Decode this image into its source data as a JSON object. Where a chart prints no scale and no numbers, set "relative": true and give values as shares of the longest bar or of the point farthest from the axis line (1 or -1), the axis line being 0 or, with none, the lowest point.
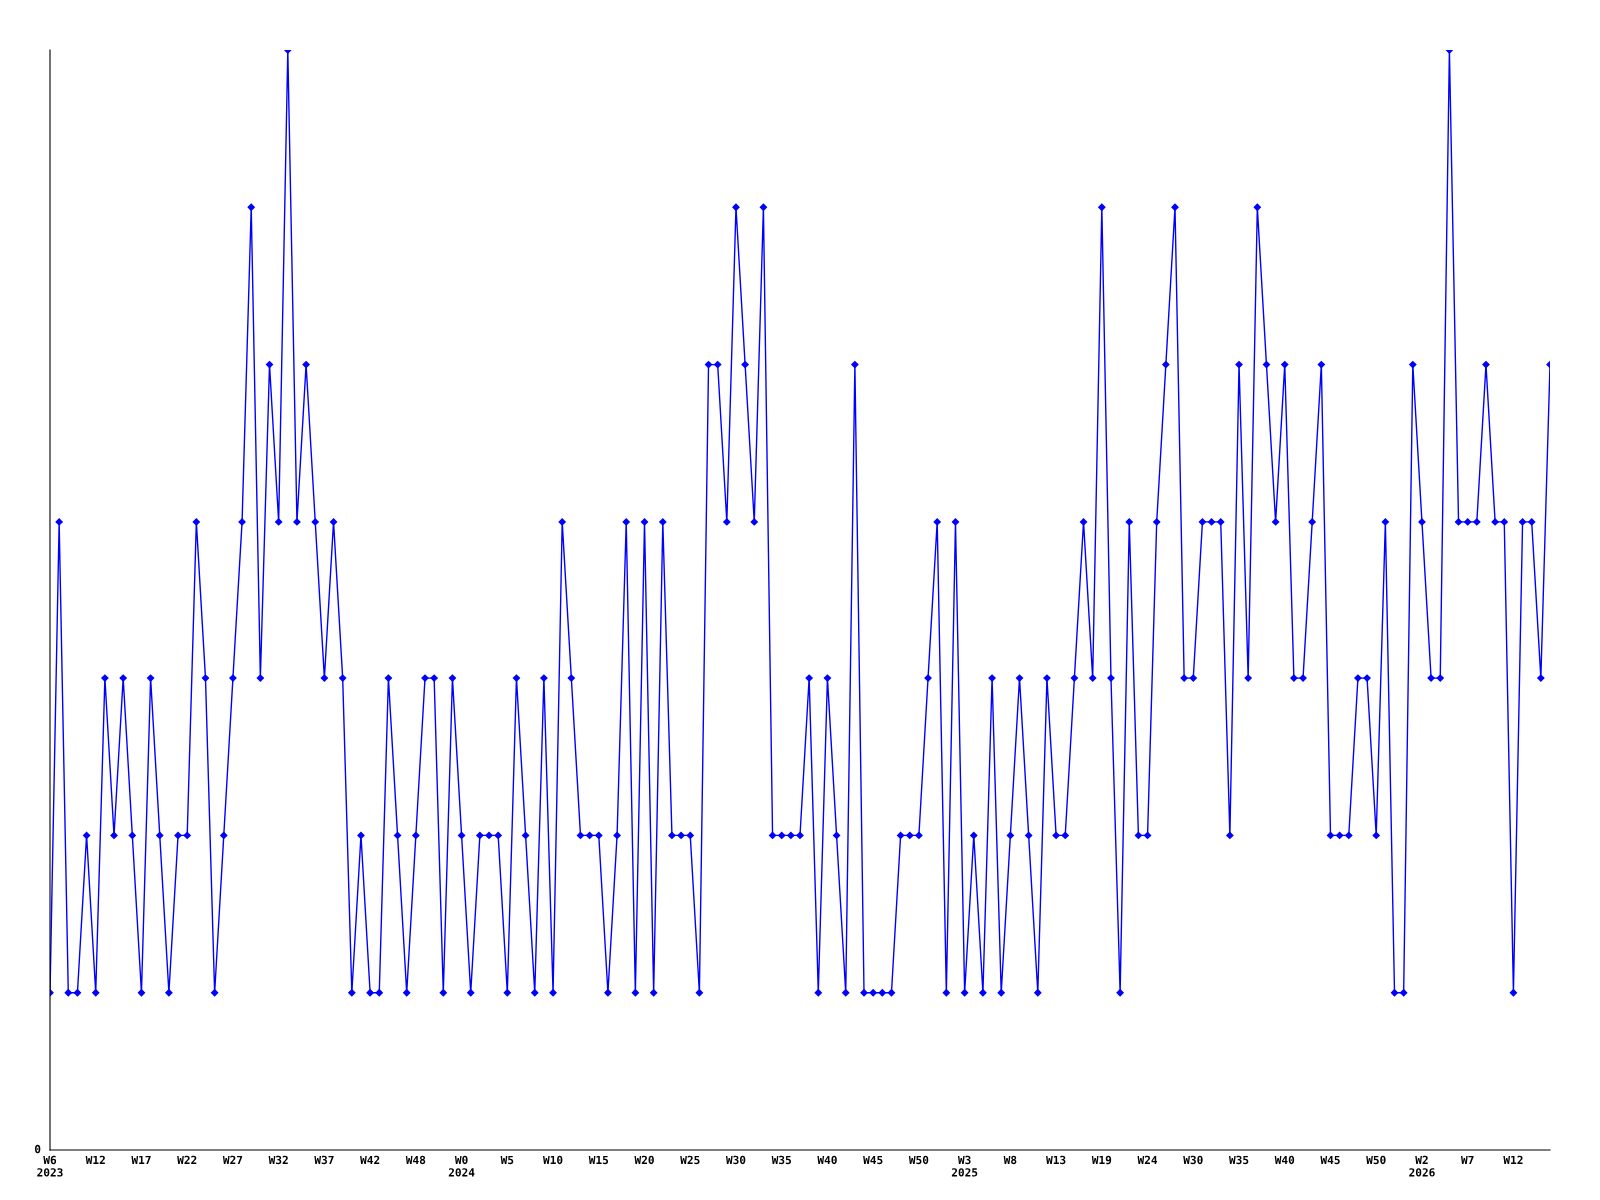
{
  "chart_data": {
    "type": "line",
    "relative": true,
    "marker": "diamond",
    "line_style": "solid",
    "grid": false,
    "annotations": [
      "0"
    ],
    "categories": [
      "W6\n2023",
      null,
      null,
      null,
      null,
      "W12",
      null,
      null,
      null,
      null,
      "W17",
      null,
      null,
      null,
      null,
      "W22",
      null,
      null,
      null,
      null,
      "W27",
      null,
      null,
      null,
      null,
      "W32",
      null,
      null,
      null,
      null,
      "W37",
      null,
      null,
      null,
      null,
      "W42",
      null,
      null,
      null,
      null,
      "W48",
      null,
      null,
      null,
      null,
      "W0\n2024",
      null,
      null,
      null,
      null,
      "W5",
      null,
      null,
      null,
      null,
      "W10",
      null,
      null,
      null,
      null,
      "W15",
      null,
      null,
      null,
      null,
      "W20",
      null,
      null,
      null,
      null,
      "W25",
      null,
      null,
      null,
      null,
      "W30",
      null,
      null,
      null,
      null,
      "W35",
      null,
      null,
      null,
      null,
      "W40",
      null,
      null,
      null,
      null,
      "W45",
      null,
      null,
      null,
      null,
      "W50",
      null,
      null,
      null,
      null,
      "W3\n2025",
      null,
      null,
      null,
      null,
      "W8",
      null,
      null,
      null,
      null,
      "W13",
      null,
      null,
      null,
      null,
      "W19",
      null,
      null,
      null,
      null,
      "W24",
      null,
      null,
      null,
      null,
      "W30",
      null,
      null,
      null,
      null,
      "W35",
      null,
      null,
      null,
      null,
      "W40",
      null,
      null,
      null,
      null,
      "W45",
      null,
      null,
      null,
      null,
      "W50",
      null,
      null,
      null,
      null,
      "W2\n2026",
      null,
      null,
      null,
      null,
      "W7",
      null,
      null,
      null,
      null,
      "W12",
      null,
      null,
      null,
      null
    ],
    "series": [
      {
        "color": "#0000ff",
        "values": [
          0.143,
          0.571,
          0.143,
          0.143,
          0.286,
          0.143,
          0.429,
          0.286,
          0.429,
          0.286,
          0.143,
          0.429,
          0.286,
          0.143,
          0.286,
          0.286,
          0.571,
          0.429,
          0.143,
          0.286,
          0.429,
          0.571,
          0.857,
          0.429,
          0.714,
          0.571,
          1,
          0.571,
          0.714,
          0.571,
          0.429,
          0.571,
          0.429,
          0.143,
          0.286,
          0.143,
          0.143,
          0.429,
          0.286,
          0.143,
          0.286,
          0.429,
          0.429,
          0.143,
          0.429,
          0.286,
          0.143,
          0.286,
          0.286,
          0.286,
          0.143,
          0.429,
          0.286,
          0.143,
          0.429,
          0.143,
          0.571,
          0.429,
          0.286,
          0.286,
          0.286,
          0.143,
          0.286,
          0.571,
          0.143,
          0.571,
          0.143,
          0.571,
          0.286,
          0.286,
          0.286,
          0.143,
          0.714,
          0.714,
          0.571,
          0.857,
          0.714,
          0.571,
          0.857,
          0.286,
          0.286,
          0.286,
          0.286,
          0.429,
          0.143,
          0.429,
          0.286,
          0.143,
          0.714,
          0.143,
          0.143,
          0.143,
          0.143,
          0.286,
          0.286,
          0.286,
          0.429,
          0.571,
          0.143,
          0.571,
          0.143,
          0.286,
          0.143,
          0.429,
          0.143,
          0.286,
          0.429,
          0.286,
          0.143,
          0.429,
          0.286,
          0.286,
          0.429,
          0.571,
          0.429,
          0.857,
          0.429,
          0.143,
          0.571,
          0.286,
          0.286,
          0.571,
          0.714,
          0.857,
          0.429,
          0.429,
          0.571,
          0.571,
          0.571,
          0.286,
          0.714,
          0.429,
          0.857,
          0.714,
          0.571,
          0.714,
          0.429,
          0.429,
          0.571,
          0.714,
          0.286,
          0.286,
          0.286,
          0.429,
          0.429,
          0.286,
          0.571,
          0.143,
          0.143,
          0.714,
          0.571,
          0.429,
          0.429,
          1,
          0.571,
          0.571,
          0.571,
          0.714,
          0.571,
          0.571,
          0.143,
          0.571,
          0.571,
          0.429,
          0.714
        ]
      }
    ]
  }
}
